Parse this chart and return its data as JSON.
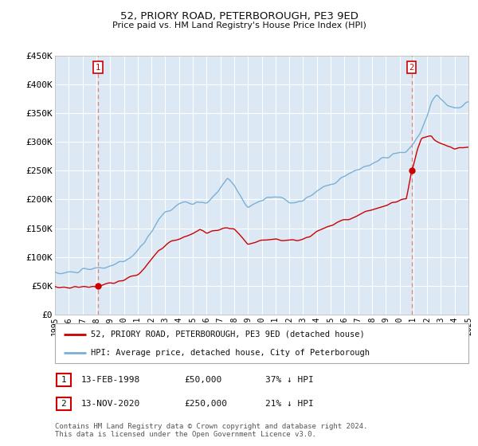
{
  "title": "52, PRIORY ROAD, PETERBOROUGH, PE3 9ED",
  "subtitle": "Price paid vs. HM Land Registry's House Price Index (HPI)",
  "legend_line1": "52, PRIORY ROAD, PETERBOROUGH, PE3 9ED (detached house)",
  "legend_line2": "HPI: Average price, detached house, City of Peterborough",
  "annotation1_label": "1",
  "annotation1_date": "13-FEB-1998",
  "annotation1_price": "£50,000",
  "annotation1_hpi": "37% ↓ HPI",
  "annotation2_label": "2",
  "annotation2_date": "13-NOV-2020",
  "annotation2_price": "£250,000",
  "annotation2_hpi": "21% ↓ HPI",
  "footer": "Contains HM Land Registry data © Crown copyright and database right 2024.\nThis data is licensed under the Open Government Licence v3.0.",
  "red_color": "#cc0000",
  "blue_color": "#7ab0d4",
  "bg_color": "#dce9f5",
  "grid_color": "#ffffff",
  "dashed_color": "#e88080",
  "marker_color": "#cc0000",
  "ylim": [
    0,
    450000
  ],
  "yticks": [
    0,
    50000,
    100000,
    150000,
    200000,
    250000,
    300000,
    350000,
    400000,
    450000
  ],
  "x_start_year": 1995,
  "x_end_year": 2025,
  "sale1_year": 1998.12,
  "sale1_price": 50000,
  "sale2_year": 2020.88,
  "sale2_price": 250000
}
